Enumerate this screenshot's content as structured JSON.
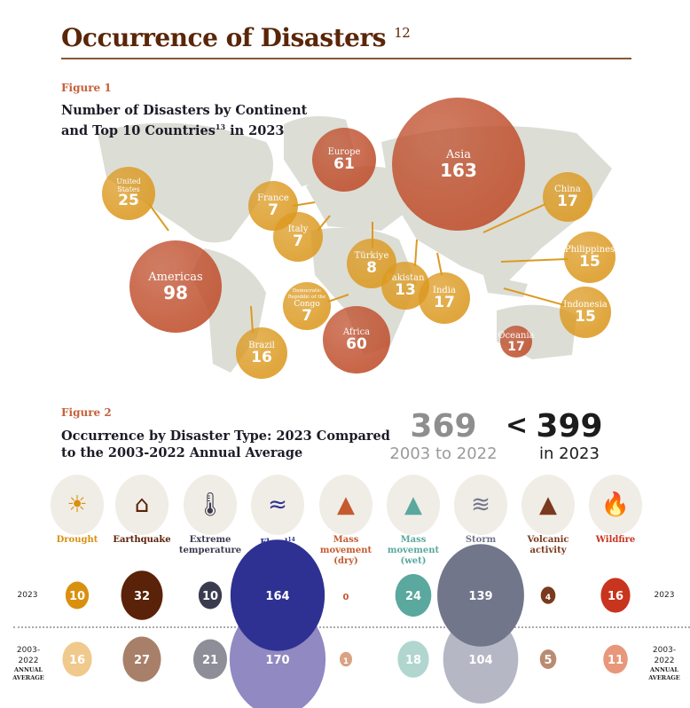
{
  "header": {
    "title": "Occurrence of Disasters",
    "title_footnote": "12"
  },
  "figure1": {
    "label": "Figure 1",
    "title_line1": "Number of Disasters by Continent",
    "title_line2a": "and Top 10 Countries",
    "title_footnote": "13",
    "title_line2b": " in 2023"
  },
  "chart_data": [
    {
      "type": "bubble-map",
      "title": "Number of Disasters by Continent and Top 10 Countries in 2023",
      "continents": [
        {
          "name": "Asia",
          "value": 163
        },
        {
          "name": "Americas",
          "value": 98
        },
        {
          "name": "Europe",
          "value": 61
        },
        {
          "name": "Africa",
          "value": 60
        },
        {
          "name": "Oceania",
          "value": 17
        }
      ],
      "countries": [
        {
          "name": "United States",
          "value": 25
        },
        {
          "name": "China",
          "value": 17
        },
        {
          "name": "India",
          "value": 17
        },
        {
          "name": "Indonesia",
          "value": 15
        },
        {
          "name": "Philippines",
          "value": 15
        },
        {
          "name": "Brazil",
          "value": 16
        },
        {
          "name": "Pakistan",
          "value": 13
        },
        {
          "name": "Türkiye",
          "value": 8
        },
        {
          "name": "France",
          "value": 7
        },
        {
          "name": "Italy",
          "value": 7
        },
        {
          "name": "Democratic Republic of the Congo",
          "value": 7
        }
      ],
      "colors": {
        "continent": "#c0502e",
        "country": "#dc9a22"
      }
    },
    {
      "type": "bubble",
      "title": "Occurrence by Disaster Type: 2023 Compared to the 2003-2022 Annual Average",
      "categories": [
        "Drought",
        "Earthquake",
        "Extreme temperature",
        "Flood",
        "Mass movement (dry)",
        "Mass movement (wet)",
        "Storm",
        "Volcanic activity",
        "Wildfire"
      ],
      "series": [
        {
          "name": "2023",
          "values": [
            10,
            32,
            10,
            164,
            0,
            24,
            139,
            4,
            16
          ]
        },
        {
          "name": "2003-2022 ANNUAL AVERAGE",
          "values": [
            16,
            27,
            21,
            170,
            1,
            18,
            104,
            5,
            11
          ]
        }
      ],
      "colors_2023": [
        "#d9900f",
        "#5a2208",
        "#3a3b4e",
        "#2e3191",
        "#c55a30",
        "#5aa89e",
        "#72768b",
        "#7a3a1e",
        "#c8341e"
      ],
      "colors_avg": [
        "#f0c98c",
        "#a8806a",
        "#8e8e99",
        "#9089c2",
        "#d9a282",
        "#b1d6cf",
        "#b5b7c5",
        "#b98b73",
        "#e8977b"
      ]
    }
  ],
  "figure2": {
    "label": "Figure 2",
    "title_line1": "Occurrence by Disaster Type: 2023 Compared",
    "title_line2": "to the 2003-2022 Annual Average",
    "total_avg": "369",
    "total_avg_label": "2003 to 2022",
    "comparator": "<",
    "total_2023": "399",
    "total_2023_label": "in 2023",
    "flood_footnote": "14",
    "row_2023_label": "2023",
    "row_avg_label_1": "2003-",
    "row_avg_label_2": "2022",
    "row_avg_label_3": "ANNUAL",
    "row_avg_label_4": "AVERAGE",
    "icons": [
      "drought-icon",
      "earthquake-icon",
      "thermometer-icon",
      "flood-icon",
      "mass-movement-dry-icon",
      "mass-movement-wet-icon",
      "storm-icon",
      "volcano-icon",
      "wildfire-icon"
    ]
  }
}
